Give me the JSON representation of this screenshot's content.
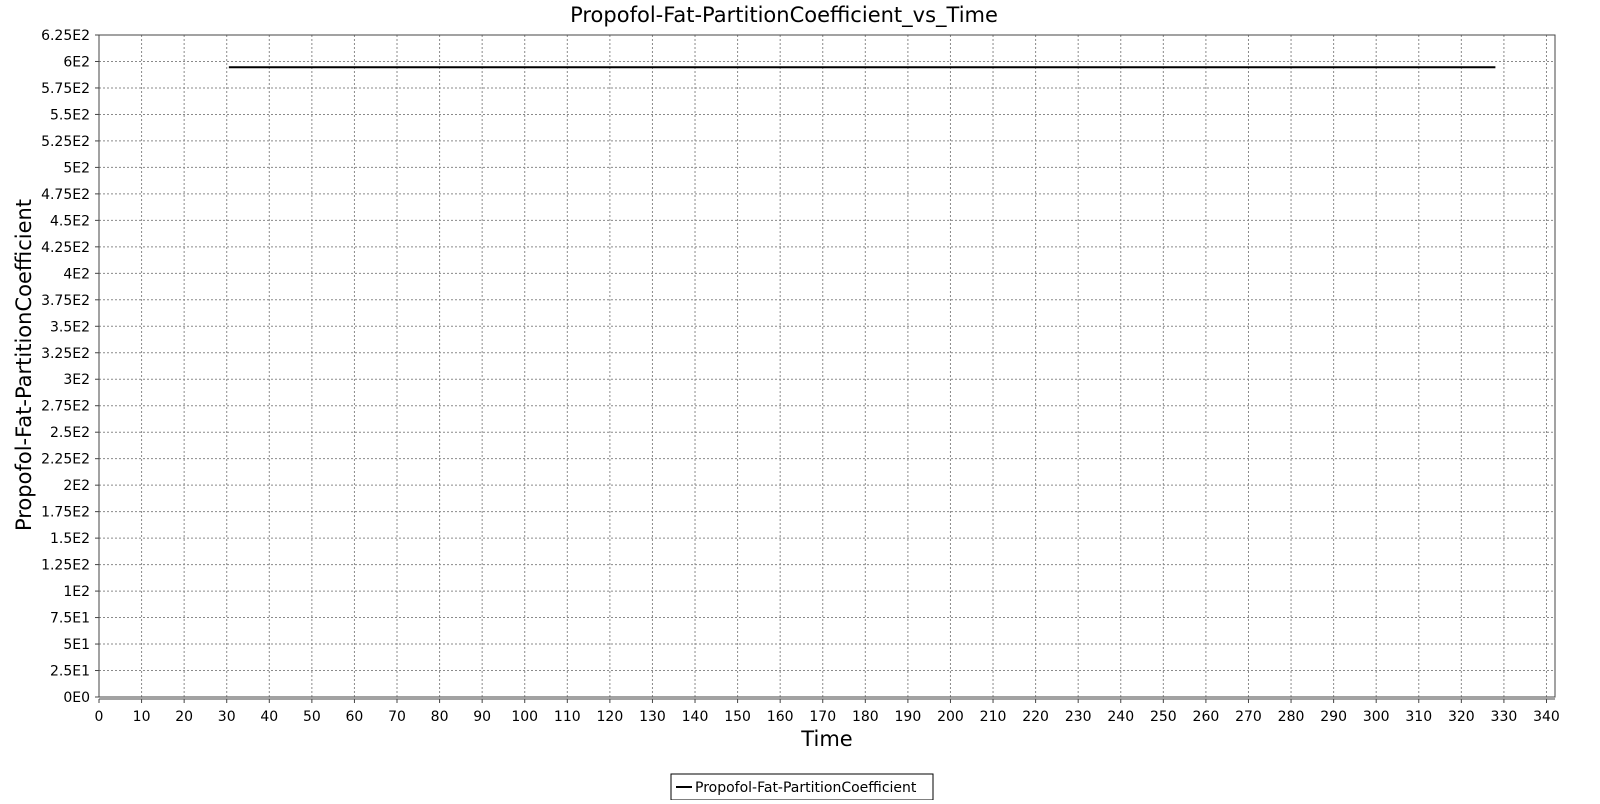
{
  "chart_data": {
    "type": "line",
    "title": "Propofol-Fat-PartitionCoefficient_vs_Time",
    "xlabel": "Time",
    "ylabel": "Propofol-Fat-PartitionCoefficient",
    "xlim": [
      0,
      342
    ],
    "ylim": [
      0,
      625
    ],
    "x_ticks": [
      0,
      10,
      20,
      30,
      40,
      50,
      60,
      70,
      80,
      90,
      100,
      110,
      120,
      130,
      140,
      150,
      160,
      170,
      180,
      190,
      200,
      210,
      220,
      230,
      240,
      250,
      260,
      270,
      280,
      290,
      300,
      310,
      320,
      330,
      340
    ],
    "x_tick_labels": [
      "0",
      "10",
      "20",
      "30",
      "40",
      "50",
      "60",
      "70",
      "80",
      "90",
      "100",
      "110",
      "120",
      "130",
      "140",
      "150",
      "160",
      "170",
      "180",
      "190",
      "200",
      "210",
      "220",
      "230",
      "240",
      "250",
      "260",
      "270",
      "280",
      "290",
      "300",
      "310",
      "320",
      "330",
      "340"
    ],
    "y_ticks": [
      0,
      25,
      50,
      75,
      100,
      125,
      150,
      175,
      200,
      225,
      250,
      275,
      300,
      325,
      350,
      375,
      400,
      425,
      450,
      475,
      500,
      525,
      550,
      575,
      600,
      625
    ],
    "y_tick_labels": [
      "0E0",
      "2.5E1",
      "5E1",
      "7.5E1",
      "1E2",
      "1.25E2",
      "1.5E2",
      "1.75E2",
      "2E2",
      "2.25E2",
      "2.5E2",
      "2.75E2",
      "3E2",
      "3.25E2",
      "3.5E2",
      "3.75E2",
      "4E2",
      "4.25E2",
      "4.5E2",
      "4.75E2",
      "5E2",
      "5.25E2",
      "5.5E2",
      "5.75E2",
      "6E2",
      "6.25E2"
    ],
    "grid": true,
    "legend_position": "bottom-center",
    "series": [
      {
        "name": "Propofol-Fat-PartitionCoefficient",
        "color": "#000000",
        "x": [
          30.5,
          328
        ],
        "y": [
          594.5,
          594.5
        ]
      }
    ]
  }
}
